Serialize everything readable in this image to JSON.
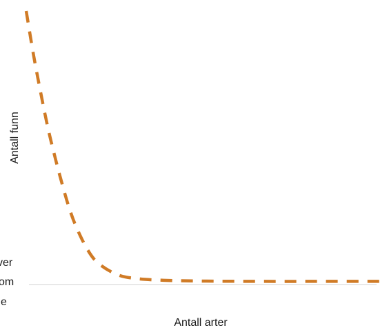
{
  "chart_data": {
    "type": "line",
    "xlabel": "Antall arter",
    "ylabel": "Antall funn",
    "grid": false,
    "legend": "none",
    "series": [
      {
        "color": "#d07b26",
        "line_style": "dashed",
        "x": [
          0.0,
          0.02,
          0.04,
          0.06,
          0.08,
          0.1,
          0.12,
          0.14,
          0.17,
          0.2,
          0.25,
          0.3,
          0.38,
          0.5,
          0.65,
          0.8,
          1.0
        ],
        "y": [
          1.0,
          0.84,
          0.7,
          0.57,
          0.46,
          0.36,
          0.27,
          0.2,
          0.12,
          0.07,
          0.03,
          0.015,
          0.008,
          0.005,
          0.004,
          0.004,
          0.004
        ]
      }
    ],
    "xlim": [
      0,
      1
    ],
    "ylim": [
      0,
      1
    ]
  },
  "clipped_text": {
    "line1": "ver",
    "line2": "om",
    "line3": "e"
  }
}
